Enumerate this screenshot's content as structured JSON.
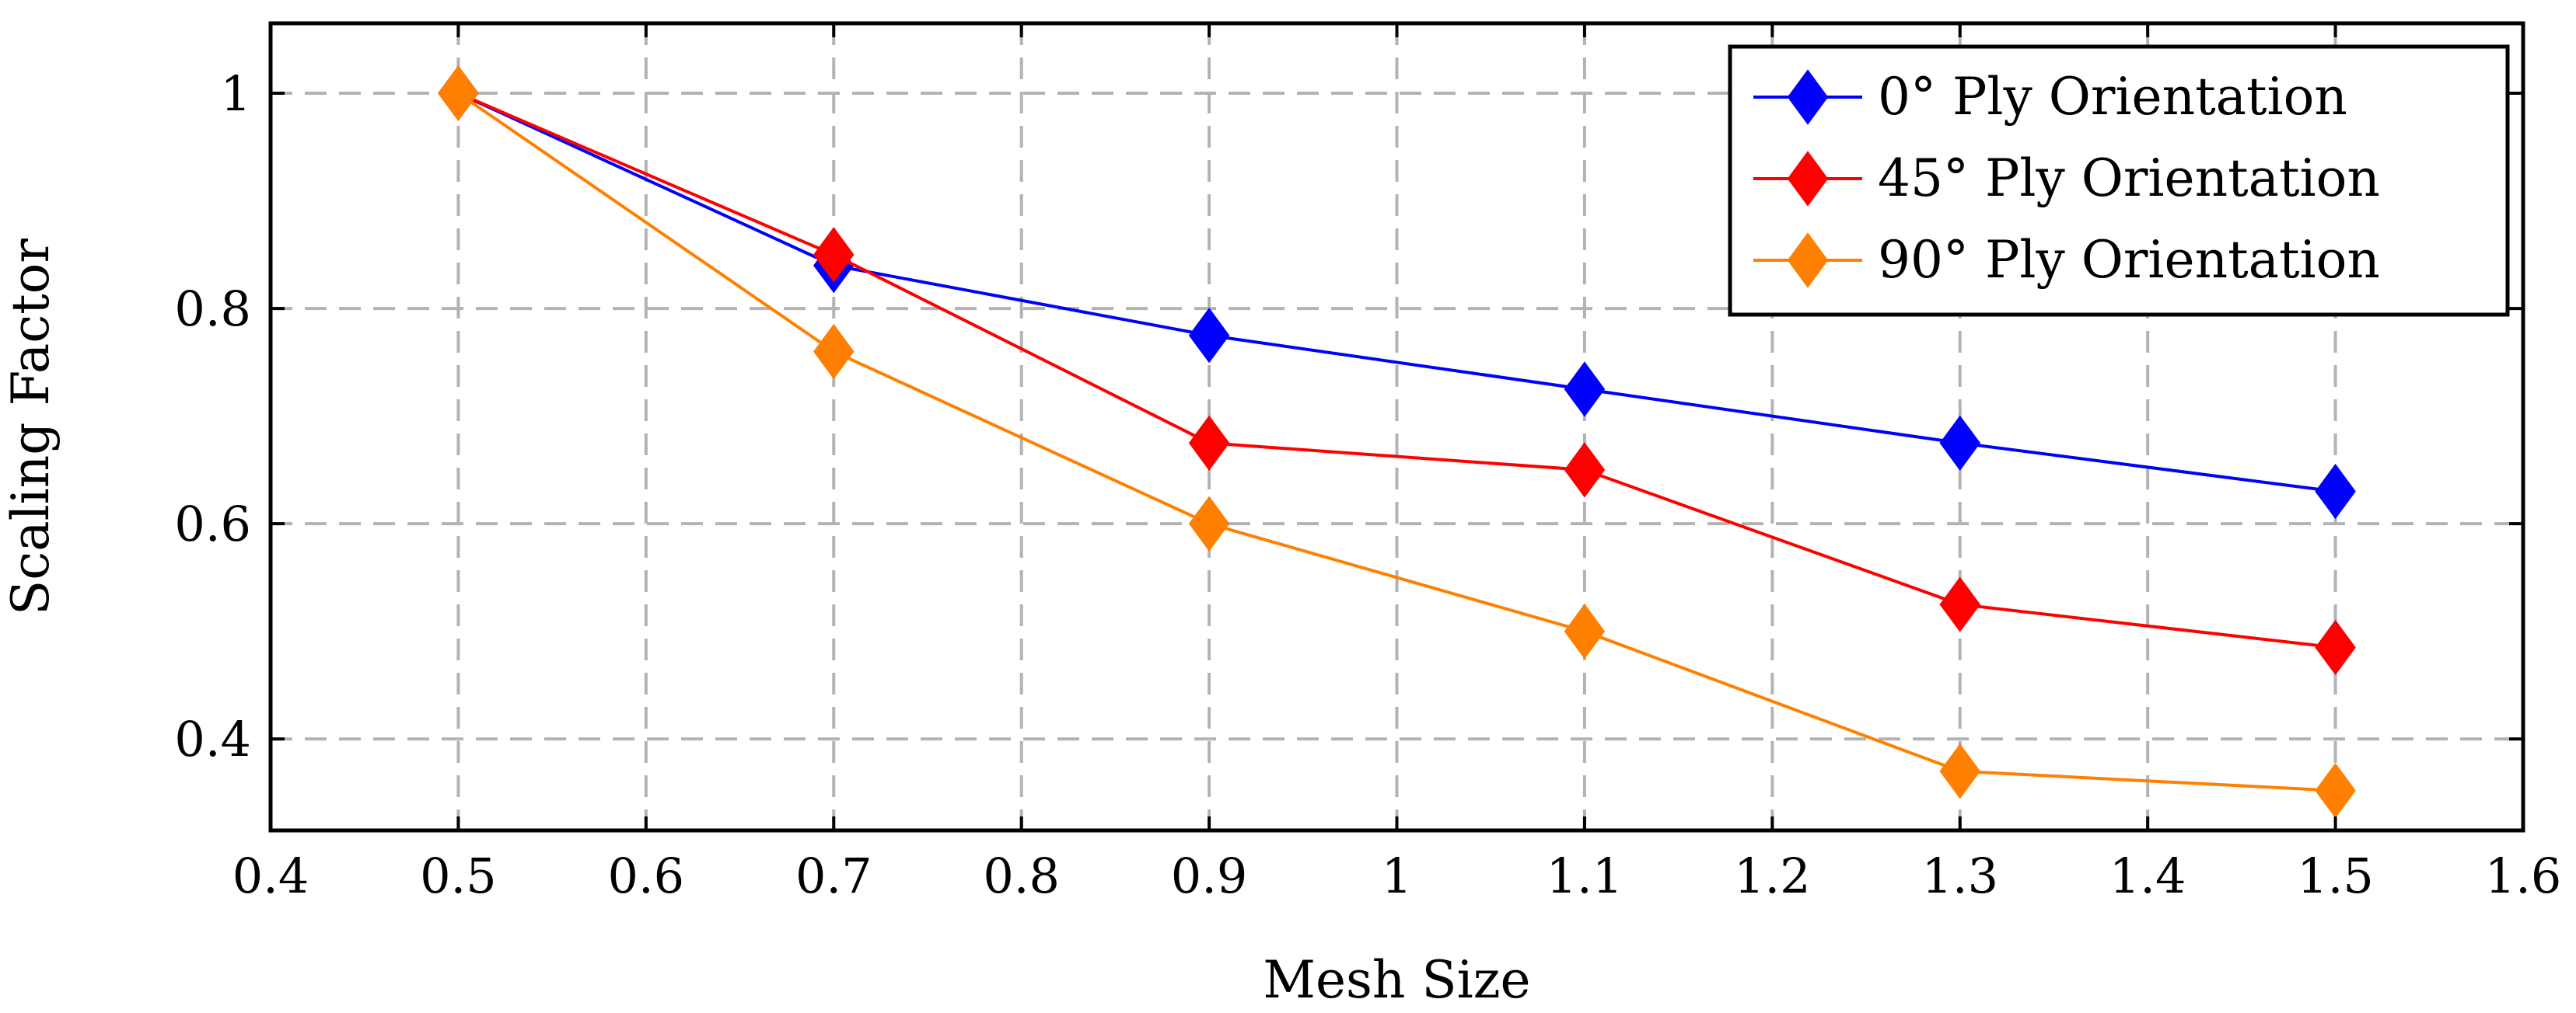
{
  "chart_data": {
    "type": "line",
    "title": "",
    "xlabel": "Mesh Size",
    "ylabel": "Scaling Factor",
    "xlim": [
      0.4,
      1.6
    ],
    "ylim": [
      0.315,
      1.065
    ],
    "xticks": [
      0.4,
      0.5,
      0.6,
      0.7,
      0.8,
      0.9,
      1.0,
      1.1,
      1.2,
      1.3,
      1.4,
      1.5,
      1.6
    ],
    "xtick_labels": [
      "0.4",
      "0.5",
      "0.6",
      "0.7",
      "0.8",
      "0.9",
      "1",
      "1.1",
      "1.2",
      "1.3",
      "1.4",
      "1.5",
      "1.6"
    ],
    "yticks": [
      0.4,
      0.6,
      0.8,
      1.0
    ],
    "ytick_labels": [
      "0.4",
      "0.6",
      "0.8",
      "1"
    ],
    "grid": true,
    "legend_position": "top-right",
    "x": [
      0.5,
      0.7,
      0.9,
      1.1,
      1.3,
      1.5
    ],
    "series": [
      {
        "name": "0° Ply Orientation",
        "color": "#0000ff",
        "marker": "diamond",
        "values": [
          1.0,
          0.84,
          0.775,
          0.725,
          0.675,
          0.63
        ]
      },
      {
        "name": "45° Ply Orientation",
        "color": "#ff0000",
        "marker": "diamond",
        "values": [
          1.0,
          0.85,
          0.675,
          0.65,
          0.525,
          0.485
        ]
      },
      {
        "name": "90° Ply Orientation",
        "color": "#ff8000",
        "marker": "diamond",
        "values": [
          1.0,
          0.76,
          0.6,
          0.5,
          0.37,
          0.352
        ]
      }
    ]
  }
}
